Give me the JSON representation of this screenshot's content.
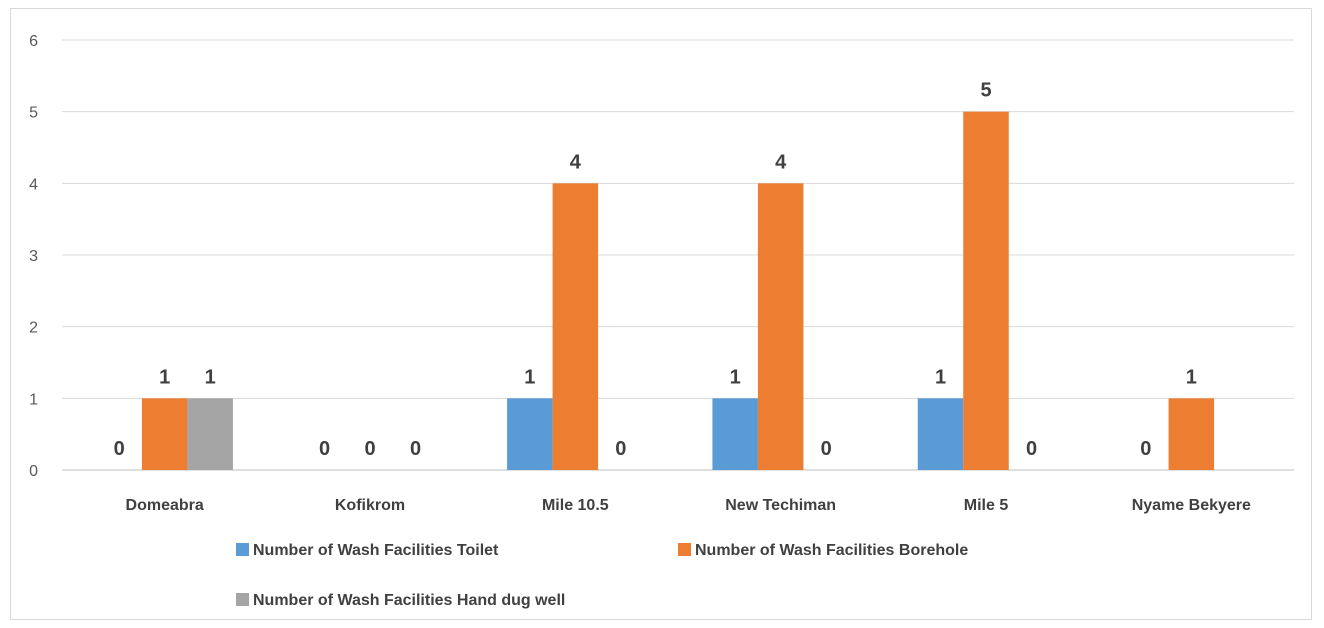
{
  "chart_data": {
    "type": "bar",
    "title": "",
    "xlabel": "",
    "ylabel": "",
    "ylim": [
      0,
      6
    ],
    "yticks": [
      "0",
      "1",
      "2",
      "3",
      "4",
      "5",
      "6"
    ],
    "grid": true,
    "legend_position": "bottom",
    "categories": [
      "Domeabra",
      "Kofikrom",
      "Mile 10.5",
      "New Techiman",
      "Mile 5",
      "Nyame Bekyere"
    ],
    "series": [
      {
        "name": "Number of Wash Facilities  Toilet",
        "color": "#5b9bd5",
        "values": [
          0,
          0,
          1,
          1,
          1,
          0
        ]
      },
      {
        "name": "Number of Wash Facilities  Borehole",
        "color": "#ed7d31",
        "values": [
          1,
          0,
          4,
          4,
          5,
          1
        ]
      },
      {
        "name": "Number of Wash Facilities  Hand dug well",
        "color": "#a5a5a5",
        "values": [
          1,
          0,
          0,
          0,
          0,
          0
        ]
      }
    ],
    "data_labels": [
      [
        "0",
        "0",
        "1",
        "1",
        "1",
        "0"
      ],
      [
        "1",
        "0",
        "4",
        "4",
        "5",
        "1"
      ],
      [
        "1",
        "0",
        "0",
        "0",
        "0",
        ""
      ]
    ]
  }
}
